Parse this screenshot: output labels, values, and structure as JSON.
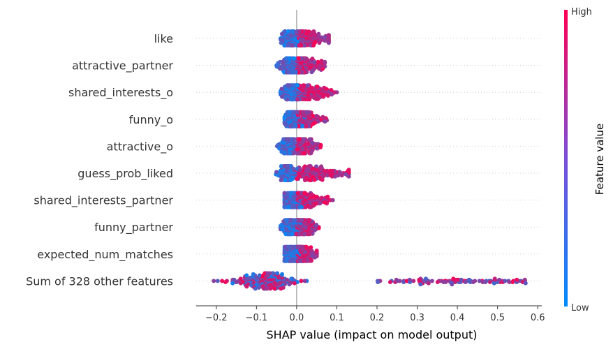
{
  "chart_data": {
    "type": "scatter",
    "subtype": "shap-beeswarm",
    "xlabel": "SHAP value (impact on model output)",
    "xlim": [
      -0.25,
      0.61
    ],
    "x_ticks": [
      -0.2,
      -0.1,
      0.0,
      0.1,
      0.2,
      0.3,
      0.4,
      0.5,
      0.6
    ],
    "x_tick_labels": [
      "−0.2",
      "−0.1",
      "0.0",
      "0.1",
      "0.2",
      "0.3",
      "0.4",
      "0.5",
      "0.6"
    ],
    "features": [
      {
        "name": "like",
        "min": -0.04,
        "max": 0.08
      },
      {
        "name": "attractive_partner",
        "min": -0.05,
        "max": 0.07
      },
      {
        "name": "shared_interests_o",
        "min": -0.04,
        "max": 0.1
      },
      {
        "name": "funny_o",
        "min": -0.03,
        "max": 0.075
      },
      {
        "name": "attractive_o",
        "min": -0.05,
        "max": 0.06
      },
      {
        "name": "guess_prob_liked",
        "min": -0.06,
        "max": 0.13
      },
      {
        "name": "shared_interests_partner",
        "min": -0.03,
        "max": 0.09
      },
      {
        "name": "funny_partner",
        "min": -0.04,
        "max": 0.055
      },
      {
        "name": "expected_num_matches",
        "min": -0.03,
        "max": 0.05
      },
      {
        "name": "Sum of 328 other features",
        "min": -0.21,
        "max": 0.57
      }
    ],
    "colorbar": {
      "title": "Feature value",
      "high_label": "High",
      "low_label": "Low",
      "high_color": "#ff0052",
      "low_color": "#008bfb"
    },
    "grid": false,
    "zero_line": true
  }
}
